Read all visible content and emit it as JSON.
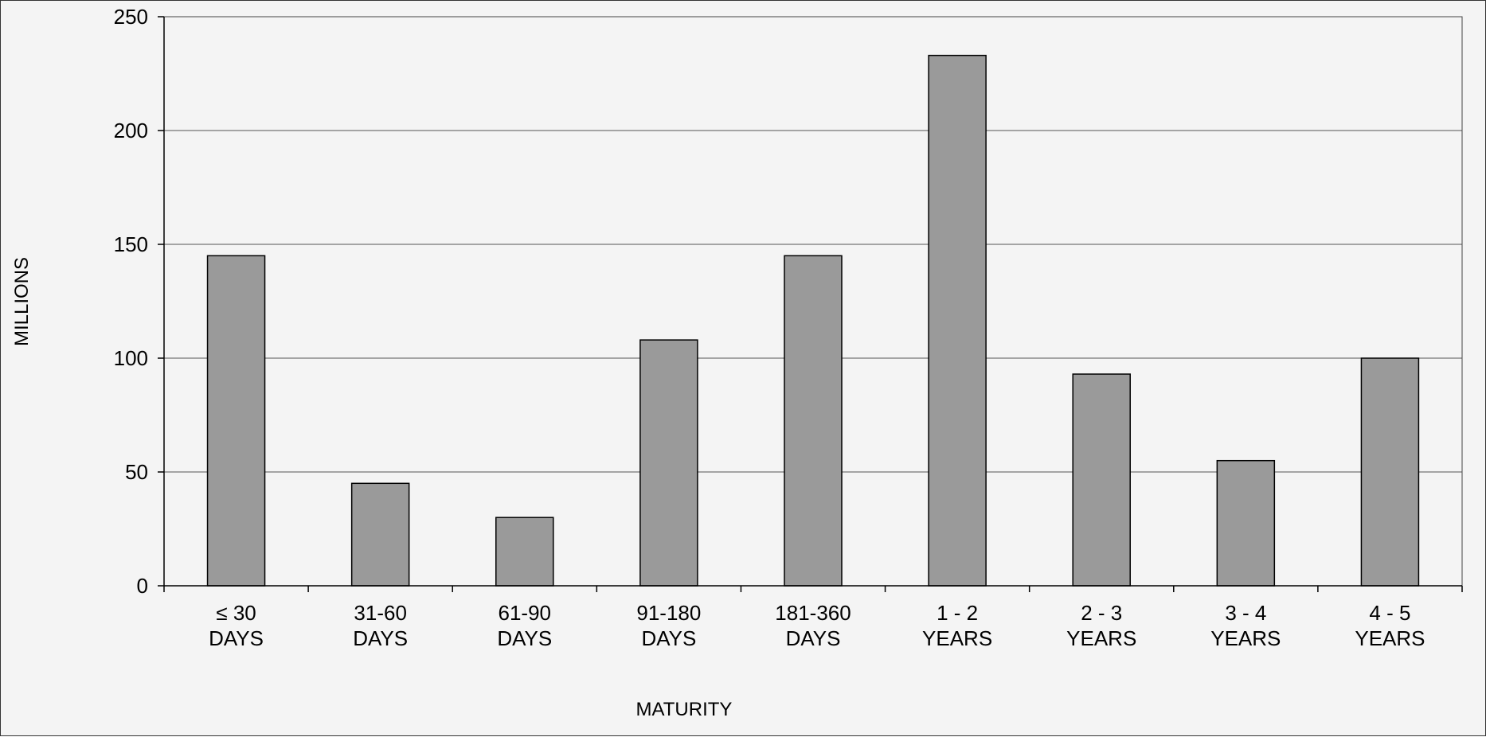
{
  "chart_data": {
    "type": "bar",
    "title": "",
    "xlabel": "MATURITY",
    "ylabel": "MILLIONS",
    "ylim": [
      0,
      250
    ],
    "yticks": [
      0,
      50,
      100,
      150,
      200,
      250
    ],
    "grid": true,
    "legend": "none",
    "categories": [
      [
        "≤ 30",
        "DAYS"
      ],
      [
        "31-60",
        "DAYS"
      ],
      [
        "61-90",
        "DAYS"
      ],
      [
        "91-180",
        "DAYS"
      ],
      [
        "181-360",
        "DAYS"
      ],
      [
        "1 - 2",
        "YEARS"
      ],
      [
        "2 - 3",
        "YEARS"
      ],
      [
        "3 - 4",
        "YEARS"
      ],
      [
        "4 - 5",
        "YEARS"
      ]
    ],
    "values": [
      145,
      45,
      30,
      108,
      145,
      233,
      93,
      55,
      100
    ],
    "colors": {
      "bar_fill": "#9a9a9a",
      "bar_stroke": "#000000",
      "grid": "#555555",
      "plot_bg": "#f4f4f4"
    }
  }
}
